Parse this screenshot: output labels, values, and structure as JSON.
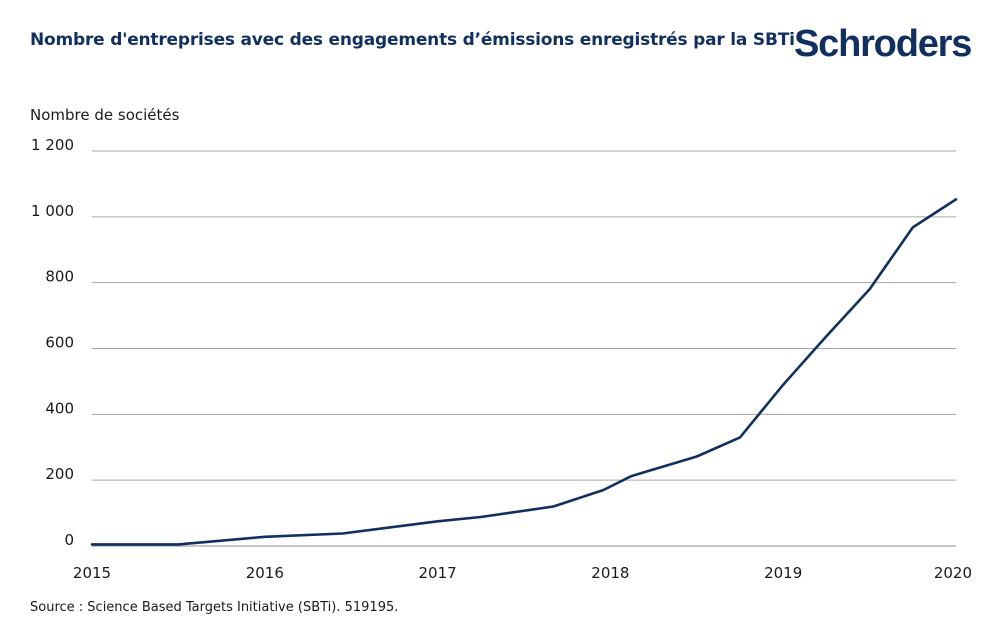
{
  "brand": {
    "name": "Schroders",
    "color": "#12305f"
  },
  "chart_data": {
    "type": "line",
    "title": "Nombre d'entreprises avec des engagements d’émissions enregistrés par la SBTi",
    "ylabel": "Nombre de sociétés",
    "xlabel": "",
    "source": "Source : Science Based Targets Initiative (SBTi). 519195.",
    "xlim": [
      2015,
      2020
    ],
    "ylim": [
      0,
      1200
    ],
    "x_ticks": [
      2015,
      2016,
      2017,
      2018,
      2019,
      2020
    ],
    "x_tick_labels": [
      "2015",
      "2016",
      "2017",
      "2018",
      "2019",
      "2020"
    ],
    "y_ticks": [
      0,
      200,
      400,
      600,
      800,
      1000,
      1200
    ],
    "y_tick_labels": [
      "0",
      "200",
      "400",
      "600",
      "800",
      "1 000",
      "1 200"
    ],
    "grid": true,
    "line_color": "#12305f",
    "series": [
      {
        "x": [
          2015.0,
          2015.5,
          2016.0,
          2016.45,
          2017.0,
          2017.25,
          2017.67,
          2017.96,
          2018.12,
          2018.5,
          2018.75,
          2019.0,
          2019.25,
          2019.5,
          2019.75,
          2020.0
        ],
        "y": [
          5,
          5,
          28,
          38,
          75,
          88,
          120,
          170,
          212,
          272,
          330,
          490,
          637,
          780,
          968,
          1053
        ]
      }
    ]
  }
}
